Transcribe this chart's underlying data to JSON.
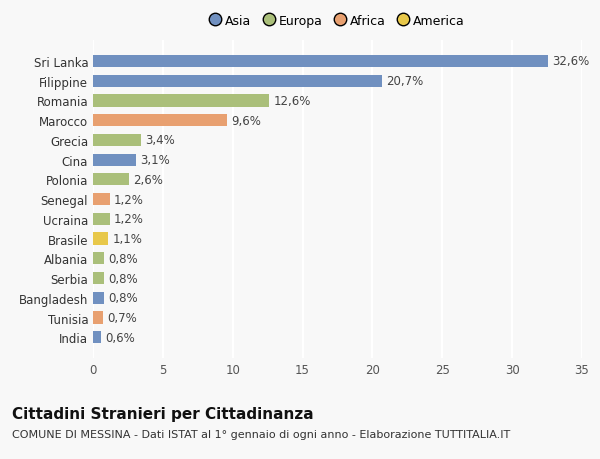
{
  "countries": [
    "India",
    "Tunisia",
    "Bangladesh",
    "Serbia",
    "Albania",
    "Brasile",
    "Ucraina",
    "Senegal",
    "Polonia",
    "Cina",
    "Grecia",
    "Marocco",
    "Romania",
    "Filippine",
    "Sri Lanka"
  ],
  "values": [
    0.6,
    0.7,
    0.8,
    0.8,
    0.8,
    1.1,
    1.2,
    1.2,
    2.6,
    3.1,
    3.4,
    9.6,
    12.6,
    20.7,
    32.6
  ],
  "labels": [
    "0,6%",
    "0,7%",
    "0,8%",
    "0,8%",
    "0,8%",
    "1,1%",
    "1,2%",
    "1,2%",
    "2,6%",
    "3,1%",
    "3,4%",
    "9,6%",
    "12,6%",
    "20,7%",
    "32,6%"
  ],
  "colors": [
    "#7090c0",
    "#e8a070",
    "#7090c0",
    "#aabf7a",
    "#aabf7a",
    "#e8c84a",
    "#aabf7a",
    "#e8a070",
    "#aabf7a",
    "#7090c0",
    "#aabf7a",
    "#e8a070",
    "#aabf7a",
    "#7090c0",
    "#7090c0"
  ],
  "legend_labels": [
    "Asia",
    "Europa",
    "Africa",
    "America"
  ],
  "legend_colors": [
    "#7090c0",
    "#aabf7a",
    "#e8a070",
    "#e8c84a"
  ],
  "title": "Cittadini Stranieri per Cittadinanza",
  "subtitle": "COMUNE DI MESSINA - Dati ISTAT al 1° gennaio di ogni anno - Elaborazione TUTTITALIA.IT",
  "xlim": [
    0,
    35
  ],
  "xticks": [
    0,
    5,
    10,
    15,
    20,
    25,
    30,
    35
  ],
  "background_color": "#f8f8f8",
  "bar_height": 0.62,
  "title_fontsize": 11,
  "subtitle_fontsize": 8,
  "tick_fontsize": 8.5,
  "label_fontsize": 8.5
}
